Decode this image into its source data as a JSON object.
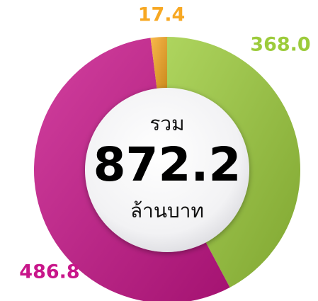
{
  "chart_data": {
    "type": "donut",
    "categories": [
      null,
      null,
      null
    ],
    "values": [
      368.0,
      486.8,
      17.4
    ],
    "value_labels": [
      "368.0",
      "486.8",
      "17.4"
    ],
    "colors": [
      "#9ccb3b",
      "#c8168a",
      "#f7a823"
    ],
    "total_label": "รวม",
    "total": 872.2,
    "unit": "ล้านบาท"
  }
}
